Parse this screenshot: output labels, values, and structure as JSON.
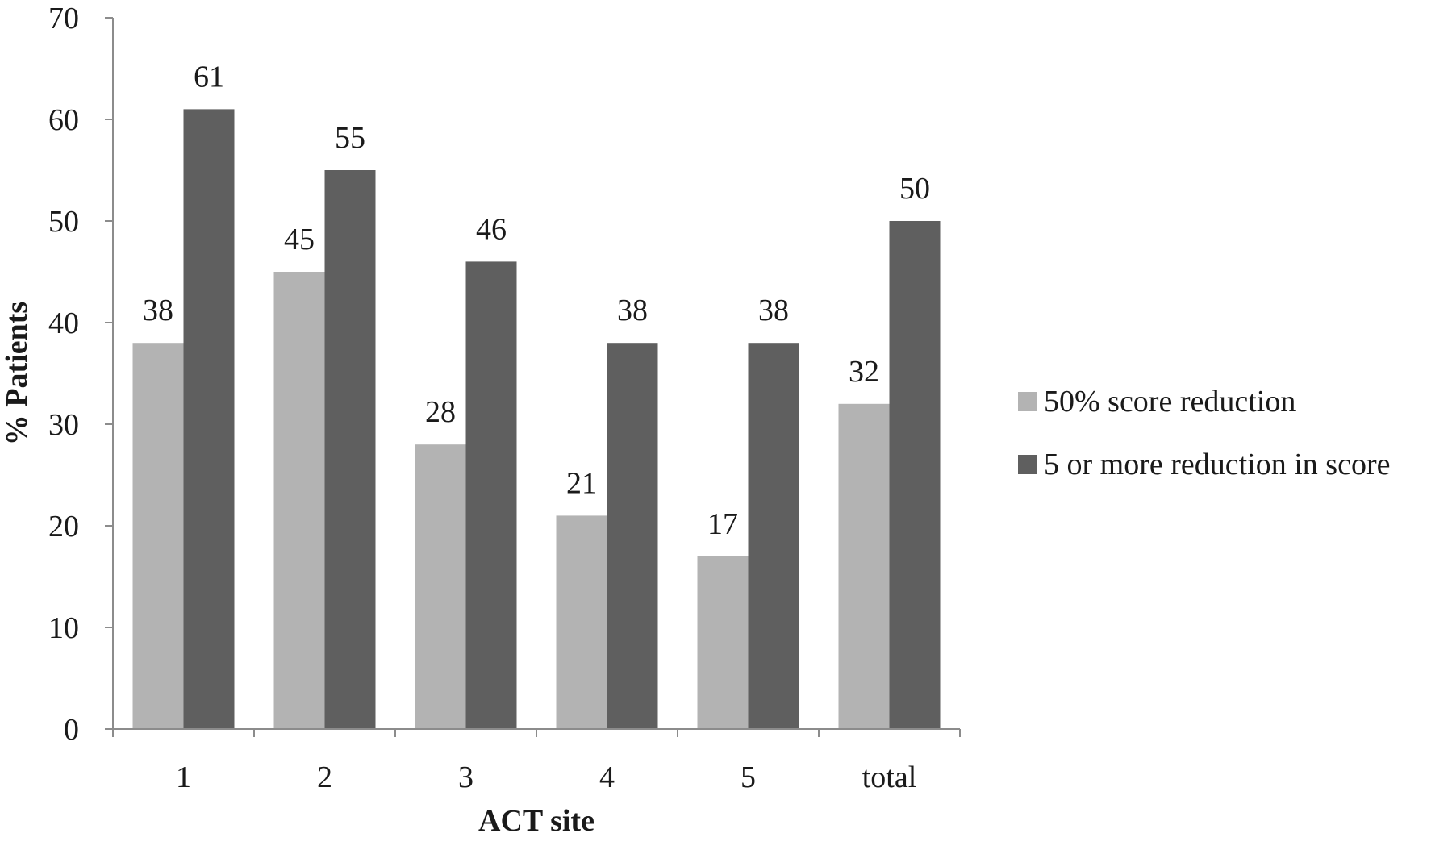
{
  "chart_data": {
    "type": "bar",
    "categories": [
      "1",
      "2",
      "3",
      "4",
      "5",
      "total"
    ],
    "series": [
      {
        "name": "50% score reduction",
        "values": [
          38,
          45,
          28,
          21,
          17,
          32
        ],
        "color": "#b3b3b3"
      },
      {
        "name": "5 or more reduction in score",
        "values": [
          61,
          55,
          46,
          38,
          38,
          50
        ],
        "color": "#5f5f5f"
      }
    ],
    "xlabel": "ACT site",
    "ylabel": "% Patients",
    "ylim": [
      0,
      70
    ],
    "yticks": [
      0,
      10,
      20,
      30,
      40,
      50,
      60,
      70
    ],
    "grid": false,
    "legend_position": "right"
  }
}
